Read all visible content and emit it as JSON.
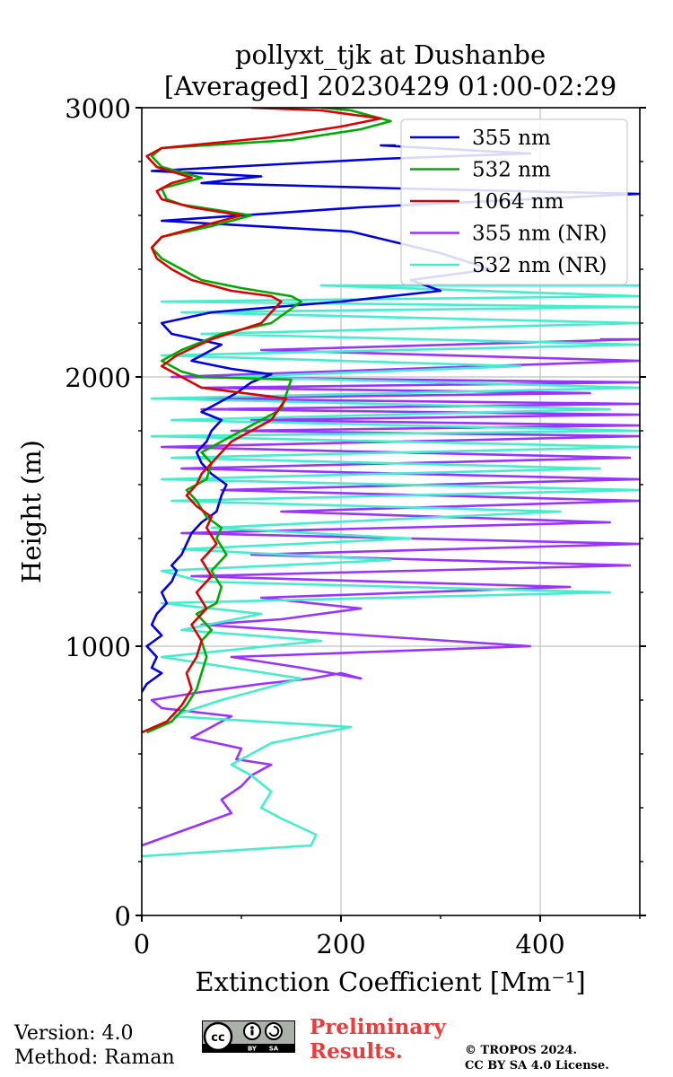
{
  "footer": {
    "version": "Version: 4.0",
    "method": "Method: Raman",
    "preliminary_line1": "Preliminary",
    "preliminary_line2": "Results.",
    "copyright_line1": "© TROPOS 2024.",
    "copyright_line2": "CC BY SA 4.0 License.",
    "badge_by": "BY",
    "badge_sa": "SA",
    "badge_icon": "cc-by-sa-license-icon"
  },
  "chart_data": {
    "type": "line",
    "title": "pollyxt_tjk at Dushanbe",
    "subtitle": "[Averaged] 20230429 01:00-02:29",
    "xlabel": "Extinction Coefficient [Mm⁻¹]",
    "ylabel": "Height (m)",
    "xlim": [
      0,
      500
    ],
    "ylim": [
      0,
      3000
    ],
    "xticks": [
      0,
      200,
      400
    ],
    "yticks": [
      0,
      1000,
      2000,
      3000
    ],
    "grid": true,
    "legend_position": "top-right",
    "series": [
      {
        "name": "355 nm",
        "color": "#0000e0",
        "x": [
          0,
          5,
          20,
          10,
          15,
          5,
          20,
          10,
          15,
          25,
          20,
          30,
          35,
          30,
          40,
          45,
          50,
          60,
          75,
          80,
          85,
          70,
          60,
          55,
          65,
          70,
          80,
          60,
          75,
          95,
          110,
          130,
          90,
          50,
          80,
          30,
          20,
          70,
          200,
          300,
          270,
          350,
          300,
          210,
          20,
          220,
          500,
          260,
          60,
          120,
          10,
          240,
          390,
          240,
          255
        ],
        "y": [
          830,
          860,
          900,
          920,
          960,
          1000,
          1040,
          1080,
          1120,
          1160,
          1200,
          1240,
          1280,
          1300,
          1340,
          1380,
          1420,
          1460,
          1500,
          1560,
          1600,
          1640,
          1680,
          1720,
          1760,
          1800,
          1840,
          1870,
          1900,
          1940,
          1980,
          2010,
          2030,
          2060,
          2120,
          2160,
          2200,
          2240,
          2280,
          2320,
          2360,
          2400,
          2460,
          2540,
          2580,
          2630,
          2680,
          2700,
          2720,
          2745,
          2765,
          2810,
          2830,
          2860,
          2860
        ]
      },
      {
        "name": "532 nm",
        "color": "#00aa00",
        "x": [
          5,
          30,
          45,
          55,
          60,
          65,
          60,
          70,
          55,
          75,
          80,
          70,
          85,
          75,
          80,
          65,
          55,
          45,
          65,
          70,
          60,
          80,
          110,
          140,
          150,
          60,
          40,
          20,
          40,
          80,
          130,
          160,
          150,
          100,
          60,
          40,
          20,
          10,
          20,
          70,
          110,
          40,
          25,
          20,
          40,
          60,
          20,
          10,
          20,
          150,
          220,
          250,
          210,
          180
        ],
        "y": [
          680,
          720,
          780,
          840,
          900,
          960,
          1020,
          1060,
          1120,
          1160,
          1220,
          1280,
          1340,
          1400,
          1440,
          1480,
          1540,
          1580,
          1620,
          1680,
          1720,
          1760,
          1820,
          1880,
          1990,
          2000,
          2020,
          2060,
          2100,
          2160,
          2200,
          2280,
          2300,
          2330,
          2360,
          2400,
          2440,
          2480,
          2520,
          2560,
          2600,
          2640,
          2660,
          2700,
          2720,
          2740,
          2780,
          2820,
          2850,
          2880,
          2920,
          2950,
          2990,
          3000
        ]
      },
      {
        "name": "1064 nm",
        "color": "#dd0000",
        "x": [
          0,
          25,
          40,
          50,
          45,
          55,
          60,
          50,
          65,
          55,
          70,
          60,
          75,
          65,
          70,
          55,
          45,
          55,
          60,
          75,
          90,
          130,
          145,
          60,
          40,
          20,
          35,
          70,
          120,
          140,
          130,
          90,
          50,
          30,
          15,
          10,
          20,
          60,
          100,
          50,
          20,
          15,
          30,
          50,
          15,
          5,
          20,
          130,
          200,
          240,
          180,
          110
        ],
        "y": [
          680,
          720,
          780,
          840,
          900,
          960,
          1020,
          1080,
          1140,
          1200,
          1260,
          1320,
          1380,
          1440,
          1480,
          1520,
          1560,
          1600,
          1640,
          1700,
          1760,
          1840,
          1920,
          1960,
          2000,
          2040,
          2080,
          2140,
          2200,
          2280,
          2300,
          2320,
          2360,
          2400,
          2440,
          2480,
          2520,
          2560,
          2600,
          2630,
          2660,
          2690,
          2720,
          2740,
          2780,
          2820,
          2850,
          2890,
          2930,
          2960,
          2990,
          3000
        ]
      },
      {
        "name": "355 nm (NR)",
        "color": "#9933ff",
        "x": [
          0,
          30,
          60,
          90,
          80,
          100,
          110,
          130,
          95,
          100,
          50,
          70,
          90,
          20,
          10,
          60,
          120,
          170,
          200,
          220,
          160,
          90,
          390,
          60,
          140,
          220,
          120,
          430,
          50,
          490,
          110,
          500,
          40,
          470,
          140,
          500,
          80,
          500,
          40,
          490,
          20,
          500,
          90,
          500,
          110,
          500,
          60,
          500,
          30,
          450,
          60,
          500,
          30,
          500,
          120,
          500,
          460
        ],
        "y": [
          260,
          300,
          340,
          380,
          430,
          480,
          520,
          560,
          580,
          620,
          660,
          700,
          740,
          770,
          800,
          830,
          860,
          880,
          900,
          880,
          920,
          960,
          1000,
          1080,
          1100,
          1140,
          1180,
          1220,
          1260,
          1300,
          1340,
          1380,
          1420,
          1460,
          1500,
          1540,
          1580,
          1620,
          1660,
          1700,
          1740,
          1780,
          1800,
          1820,
          1840,
          1860,
          1880,
          1900,
          1920,
          1940,
          1960,
          1980,
          2000,
          2060,
          2100,
          2140,
          2140
        ]
      },
      {
        "name": "532 nm (NR)",
        "color": "#44eecc",
        "x": [
          0,
          170,
          175,
          140,
          120,
          130,
          110,
          90,
          100,
          110,
          130,
          210,
          30,
          80,
          160,
          90,
          20,
          180,
          40,
          120,
          20,
          470,
          60,
          20,
          250,
          40,
          270,
          70,
          420,
          30,
          500,
          20,
          460,
          30,
          500,
          10,
          500,
          30,
          470,
          10,
          500,
          90,
          380,
          20,
          500,
          60,
          500,
          40,
          500,
          20,
          500,
          180,
          500
        ],
        "y": [
          220,
          260,
          300,
          360,
          400,
          460,
          520,
          560,
          580,
          600,
          640,
          700,
          740,
          800,
          880,
          920,
          960,
          1020,
          1060,
          1120,
          1160,
          1200,
          1240,
          1280,
          1320,
          1360,
          1400,
          1440,
          1500,
          1540,
          1580,
          1620,
          1660,
          1700,
          1740,
          1780,
          1800,
          1840,
          1880,
          1920,
          1960,
          2000,
          2040,
          2080,
          2120,
          2160,
          2200,
          2240,
          2260,
          2280,
          2300,
          2340,
          2340
        ]
      }
    ]
  }
}
